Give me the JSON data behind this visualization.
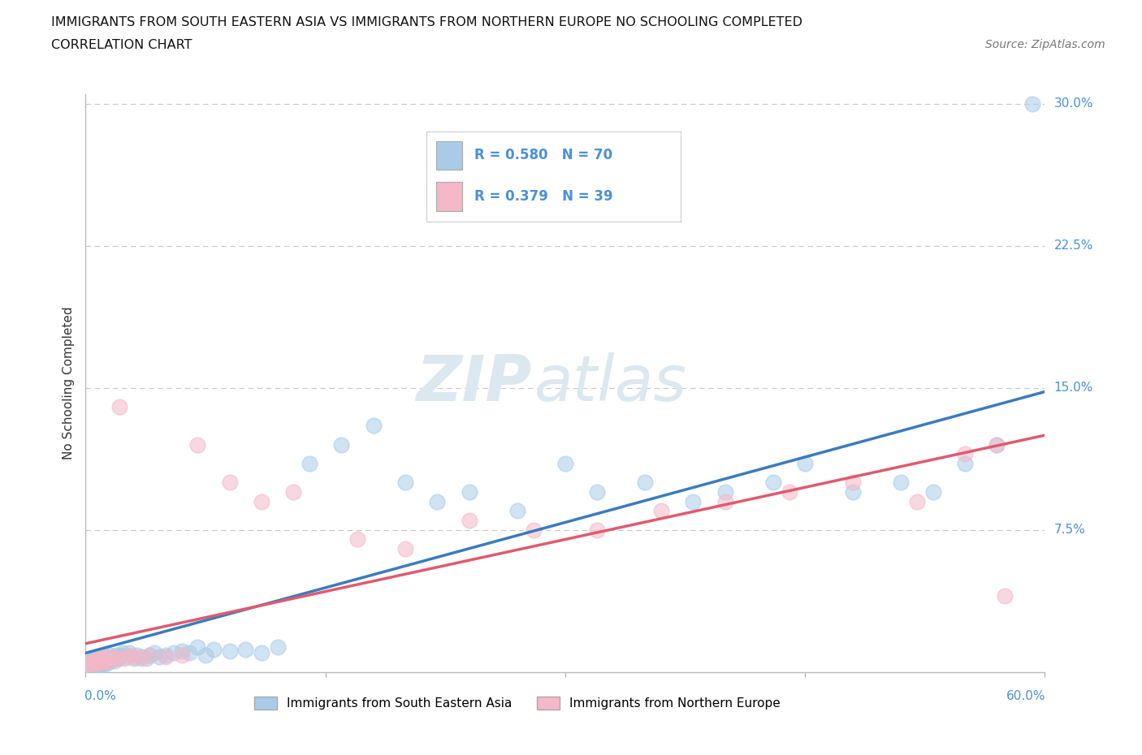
{
  "title_line1": "IMMIGRANTS FROM SOUTH EASTERN ASIA VS IMMIGRANTS FROM NORTHERN EUROPE NO SCHOOLING COMPLETED",
  "title_line2": "CORRELATION CHART",
  "source": "Source: ZipAtlas.com",
  "ylabel": "No Schooling Completed",
  "legend_blue_label": "Immigrants from South Eastern Asia",
  "legend_pink_label": "Immigrants from Northern Europe",
  "blue_color": "#a8cce8",
  "pink_color": "#f4b8c8",
  "blue_line_color": "#3a7bbf",
  "pink_line_color": "#e05a6e",
  "legend_text_color": "#4a90d9",
  "blue_R": 0.58,
  "blue_N": 70,
  "pink_R": 0.379,
  "pink_N": 39,
  "xlim": [
    0.0,
    0.6
  ],
  "ylim": [
    0.0,
    0.305
  ],
  "ytick_vals": [
    0.075,
    0.15,
    0.225,
    0.3
  ],
  "ytick_labels": [
    "7.5%",
    "15.0%",
    "22.5%",
    "30.0%"
  ],
  "grid_color": "#c8c8c8",
  "watermark_color": "#dce8f0",
  "background": "#ffffff",
  "blue_x": [
    0.002,
    0.003,
    0.004,
    0.005,
    0.005,
    0.006,
    0.007,
    0.007,
    0.008,
    0.008,
    0.009,
    0.009,
    0.01,
    0.01,
    0.011,
    0.011,
    0.012,
    0.012,
    0.013,
    0.014,
    0.015,
    0.015,
    0.016,
    0.017,
    0.018,
    0.019,
    0.02,
    0.021,
    0.022,
    0.023,
    0.025,
    0.027,
    0.03,
    0.032,
    0.035,
    0.038,
    0.04,
    0.043,
    0.046,
    0.05,
    0.055,
    0.06,
    0.065,
    0.07,
    0.075,
    0.08,
    0.09,
    0.1,
    0.11,
    0.12,
    0.14,
    0.16,
    0.18,
    0.2,
    0.22,
    0.24,
    0.27,
    0.3,
    0.32,
    0.35,
    0.38,
    0.4,
    0.43,
    0.45,
    0.48,
    0.51,
    0.53,
    0.55,
    0.57,
    0.592
  ],
  "blue_y": [
    0.005,
    0.003,
    0.006,
    0.004,
    0.007,
    0.003,
    0.005,
    0.008,
    0.004,
    0.007,
    0.003,
    0.006,
    0.004,
    0.008,
    0.005,
    0.009,
    0.004,
    0.007,
    0.006,
    0.005,
    0.006,
    0.009,
    0.007,
    0.008,
    0.006,
    0.009,
    0.007,
    0.008,
    0.009,
    0.01,
    0.008,
    0.01,
    0.007,
    0.009,
    0.008,
    0.007,
    0.009,
    0.01,
    0.008,
    0.009,
    0.01,
    0.011,
    0.01,
    0.013,
    0.009,
    0.012,
    0.011,
    0.012,
    0.01,
    0.013,
    0.11,
    0.12,
    0.13,
    0.1,
    0.09,
    0.095,
    0.085,
    0.11,
    0.095,
    0.1,
    0.09,
    0.095,
    0.1,
    0.11,
    0.095,
    0.1,
    0.095,
    0.11,
    0.12,
    0.3
  ],
  "pink_x": [
    0.002,
    0.003,
    0.005,
    0.006,
    0.007,
    0.008,
    0.009,
    0.01,
    0.011,
    0.012,
    0.013,
    0.015,
    0.017,
    0.019,
    0.021,
    0.024,
    0.027,
    0.03,
    0.035,
    0.04,
    0.05,
    0.06,
    0.07,
    0.09,
    0.11,
    0.13,
    0.17,
    0.2,
    0.24,
    0.28,
    0.32,
    0.36,
    0.4,
    0.44,
    0.48,
    0.52,
    0.55,
    0.57,
    0.575
  ],
  "pink_y": [
    0.004,
    0.005,
    0.004,
    0.006,
    0.005,
    0.007,
    0.006,
    0.005,
    0.008,
    0.006,
    0.007,
    0.006,
    0.008,
    0.007,
    0.14,
    0.007,
    0.009,
    0.008,
    0.007,
    0.009,
    0.008,
    0.009,
    0.12,
    0.1,
    0.09,
    0.095,
    0.07,
    0.065,
    0.08,
    0.075,
    0.075,
    0.085,
    0.09,
    0.095,
    0.1,
    0.09,
    0.115,
    0.12,
    0.04
  ]
}
